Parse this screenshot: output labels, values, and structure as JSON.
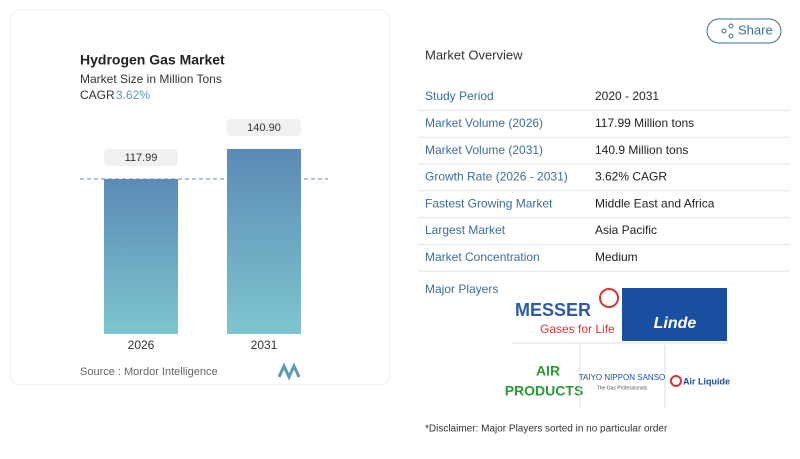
{
  "chart_data": {
    "type": "bar",
    "title": "Hydrogen Gas Market",
    "subtitle": "Market Size in Million Tons",
    "cagr_label": "CAGR",
    "cagr_value": "3.62%",
    "categories": [
      "2026",
      "2031"
    ],
    "values": [
      117.99,
      140.9
    ],
    "value_labels": [
      "117.99",
      "140.90"
    ],
    "ylim": [
      0,
      150
    ],
    "source": "Source : Mordor Intelligence"
  },
  "share": "Share",
  "overview": {
    "title": "Market Overview",
    "rows": [
      [
        "Study Period",
        "2020 - 2031"
      ],
      [
        "Market Volume (2026)",
        "117.99 Million tons"
      ],
      [
        "Market Volume (2031)",
        "140.9 Million tons"
      ],
      [
        "Growth Rate (2026 - 2031)",
        "3.62% CAGR"
      ],
      [
        "Fastest Growing Market",
        "Middle East and Africa"
      ],
      [
        "Largest Market",
        "Asia Pacific"
      ],
      [
        "Market Concentration",
        "Medium"
      ]
    ]
  },
  "players": {
    "title": "Major Players",
    "logos": [
      "MESSER",
      "Gases for Life",
      "Linde",
      "AIR",
      "PRODUCTS",
      "TAIYO NIPPON SANSO",
      "The Gas Professionals",
      "Air Liquide"
    ]
  },
  "disclaimer": "*Disclaimer: Major Players sorted in no particular order"
}
